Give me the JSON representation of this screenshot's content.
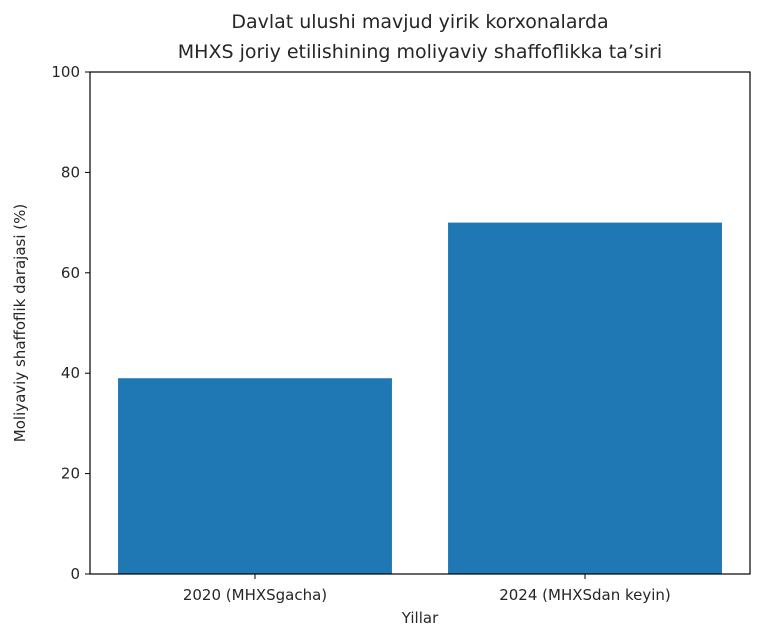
{
  "chart_data": {
    "type": "bar",
    "title_lines": [
      "Davlat ulushi mavjud yirik korxonalarda",
      "MHXS joriy etilishining moliyaviy shaffoflikka ta’siri"
    ],
    "xlabel": "Yillar",
    "ylabel": "Moliyaviy shaffoflik darajasi (%)",
    "categories": [
      "2020 (MHXSgacha)",
      "2024 (MHXSdan keyin)"
    ],
    "values": [
      39,
      70
    ],
    "ylim": [
      0,
      100
    ],
    "yticks": [
      "0",
      "20",
      "40",
      "60",
      "80",
      "100"
    ],
    "bar_color": "#1f77b4",
    "grid": false
  }
}
